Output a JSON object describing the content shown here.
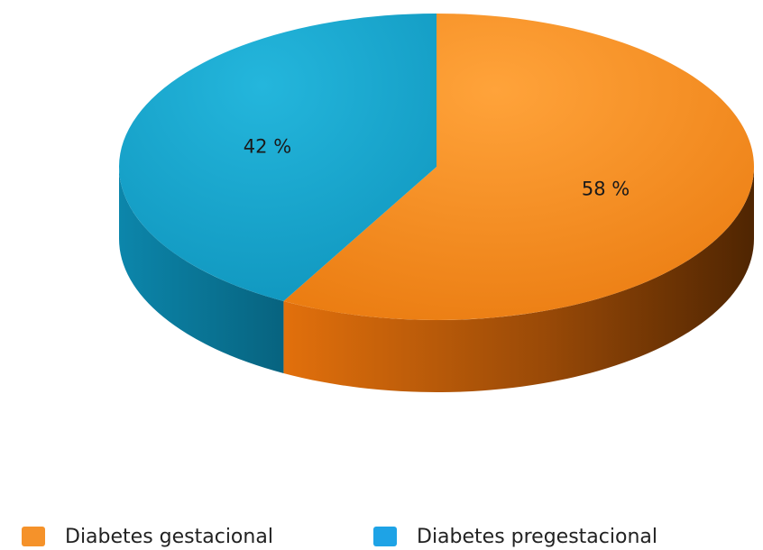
{
  "chart_data": {
    "type": "pie",
    "categories": [
      "Diabetes gestacional",
      "Diabetes pregestacional"
    ],
    "values": [
      58,
      42
    ],
    "labels": [
      "58 %",
      "42 %"
    ],
    "colors": [
      "#f08418",
      "#17a0c8"
    ],
    "legend_position": "bottom"
  },
  "legend": {
    "items": [
      {
        "label": "Diabetes gestacional",
        "color": "#f5922a"
      },
      {
        "label": "Diabetes pregestacional",
        "color": "#1ea3e6"
      }
    ]
  }
}
